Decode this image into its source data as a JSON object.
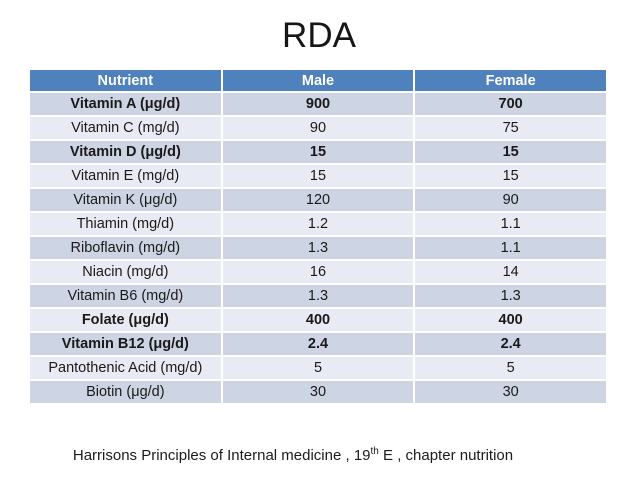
{
  "title": "RDA",
  "table": {
    "headers": [
      "Nutrient",
      "Male",
      "Female"
    ],
    "rows": [
      {
        "nutrient": "Vitamin A (μg/d)",
        "male": "900",
        "female": "700",
        "bold": true
      },
      {
        "nutrient": "Vitamin C (mg/d)",
        "male": "90",
        "female": "75",
        "bold": false
      },
      {
        "nutrient": "Vitamin D (μg/d)",
        "male": "15",
        "female": "15",
        "bold": true
      },
      {
        "nutrient": "Vitamin E (mg/d)",
        "male": "15",
        "female": "15",
        "bold": false
      },
      {
        "nutrient": "Vitamin K (μg/d)",
        "male": "120",
        "female": "90",
        "bold": false
      },
      {
        "nutrient": "Thiamin (mg/d)",
        "male": "1.2",
        "female": "1.1",
        "bold": false
      },
      {
        "nutrient": "Riboflavin (mg/d)",
        "male": "1.3",
        "female": "1.1",
        "bold": false
      },
      {
        "nutrient": "Niacin (mg/d)",
        "male": "16",
        "female": "14",
        "bold": false
      },
      {
        "nutrient": "Vitamin B6 (mg/d)",
        "male": "1.3",
        "female": "1.3",
        "bold": false
      },
      {
        "nutrient": "Folate (μg/d)",
        "male": "400",
        "female": "400",
        "bold": true
      },
      {
        "nutrient": "Vitamin B12 (μg/d)",
        "male": "2.4",
        "female": "2.4",
        "bold": true
      },
      {
        "nutrient": "Pantothenic Acid (mg/d)",
        "male": "5",
        "female": "5",
        "bold": false
      },
      {
        "nutrient": "Biotin (μg/d)",
        "male": "30",
        "female": "30",
        "bold": false
      }
    ]
  },
  "footer": {
    "text_before": "Harrisons Principles of Internal medicine , 19",
    "superscript": "th",
    "text_after": " E , chapter nutrition"
  },
  "colors": {
    "header_bg": "#4F81BD",
    "band_dark": "#CDD4E4",
    "band_light": "#E9EBF4",
    "header_text": "#FFFFFF",
    "body_text": "#1A1A1A"
  }
}
